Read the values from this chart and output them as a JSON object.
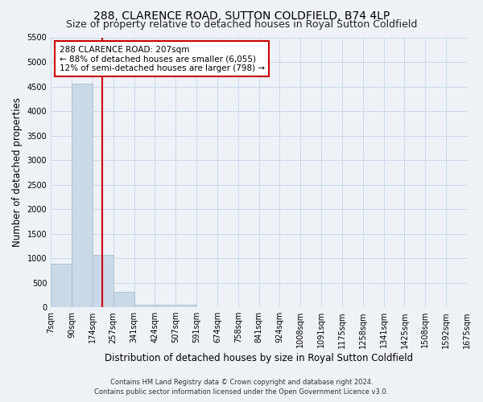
{
  "title": "288, CLARENCE ROAD, SUTTON COLDFIELD, B74 4LP",
  "subtitle": "Size of property relative to detached houses in Royal Sutton Coldfield",
  "xlabel": "Distribution of detached houses by size in Royal Sutton Coldfield",
  "ylabel": "Number of detached properties",
  "footer_line1": "Contains HM Land Registry data © Crown copyright and database right 2024.",
  "footer_line2": "Contains public sector information licensed under the Open Government Licence v3.0.",
  "bin_labels": [
    "7sqm",
    "90sqm",
    "174sqm",
    "257sqm",
    "341sqm",
    "424sqm",
    "507sqm",
    "591sqm",
    "674sqm",
    "758sqm",
    "841sqm",
    "924sqm",
    "1008sqm",
    "1091sqm",
    "1175sqm",
    "1258sqm",
    "1341sqm",
    "1425sqm",
    "1508sqm",
    "1592sqm",
    "1675sqm"
  ],
  "values": [
    880,
    4560,
    1060,
    310,
    60,
    50,
    50,
    0,
    0,
    0,
    0,
    0,
    0,
    0,
    0,
    0,
    0,
    0,
    0,
    0
  ],
  "bar_color": "#c9d9e8",
  "bar_edge_color": "#a8bfd0",
  "property_line_color": "#cc0000",
  "property_line_x": 2.5,
  "annotation_text_line1": "288 CLARENCE ROAD: 207sqm",
  "annotation_text_line2": "← 88% of detached houses are smaller (6,055)",
  "annotation_text_line3": "12% of semi-detached houses are larger (798) →",
  "annotation_box_color": "#ffffff",
  "annotation_box_edge": "#cc0000",
  "ylim": [
    0,
    5500
  ],
  "yticks": [
    0,
    500,
    1000,
    1500,
    2000,
    2500,
    3000,
    3500,
    4000,
    4500,
    5000,
    5500
  ],
  "grid_color": "#c8d8e8",
  "bg_color": "#eef2f7",
  "title_fontsize": 10,
  "subtitle_fontsize": 9,
  "axis_label_fontsize": 8.5,
  "tick_fontsize": 7,
  "annotation_fontsize": 7.5,
  "footer_fontsize": 6
}
